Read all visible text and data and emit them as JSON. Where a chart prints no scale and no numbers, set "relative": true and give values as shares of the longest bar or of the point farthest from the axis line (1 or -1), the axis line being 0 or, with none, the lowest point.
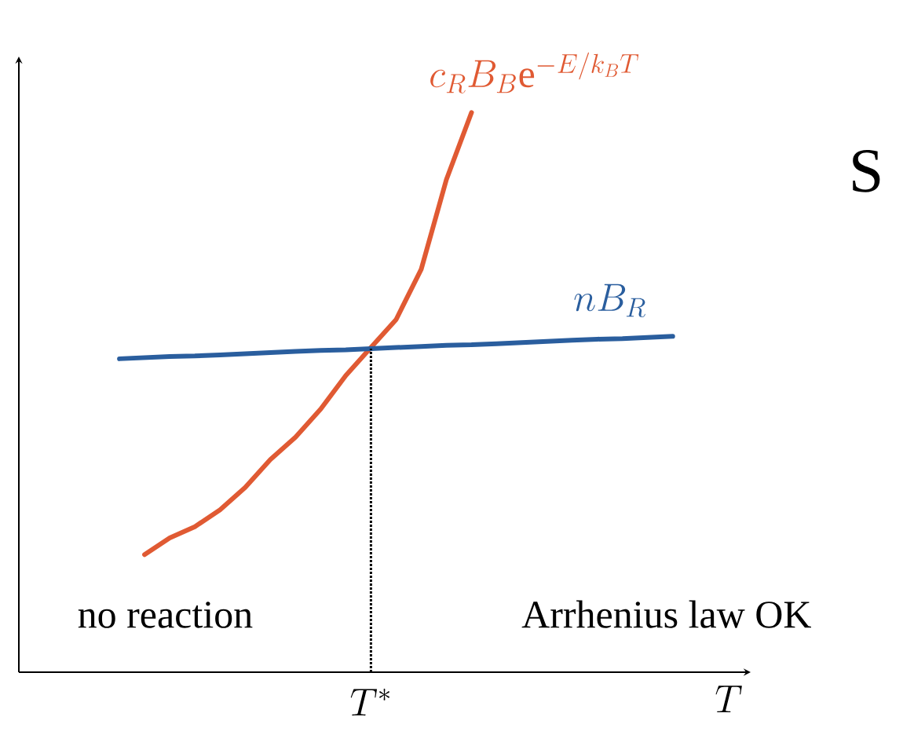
{
  "chart_data": {
    "type": "line",
    "relative": true,
    "xlabel": "T",
    "categories": [
      null,
      null,
      null,
      null,
      null,
      null,
      null,
      null,
      null,
      null,
      null,
      null,
      null,
      null,
      null,
      null,
      null,
      null,
      null,
      null,
      null,
      null,
      null
    ],
    "series": [
      {
        "name": "c_R B_B \\mathrm{e}^{-E/k_B T}",
        "color": "#e05a33",
        "values": [
          null,
          0.21,
          0.24,
          0.26,
          0.29,
          0.33,
          0.38,
          0.42,
          0.47,
          0.53,
          0.58,
          0.63,
          0.72,
          0.88,
          1.0,
          null,
          null,
          null,
          null,
          null,
          null,
          null,
          null
        ]
      },
      {
        "name": "n B_R",
        "color": "#2a5e9e",
        "values": [
          0.56,
          0.562,
          0.564,
          0.565,
          0.567,
          0.569,
          0.571,
          0.573,
          0.575,
          0.576,
          0.578,
          0.58,
          0.582,
          0.584,
          0.585,
          0.587,
          0.589,
          0.591,
          0.593,
          0.595,
          0.596,
          0.598,
          0.6
        ]
      }
    ],
    "annotations": [
      "T^*",
      "no reaction",
      "Arrhenius law OK",
      "S"
    ]
  }
}
